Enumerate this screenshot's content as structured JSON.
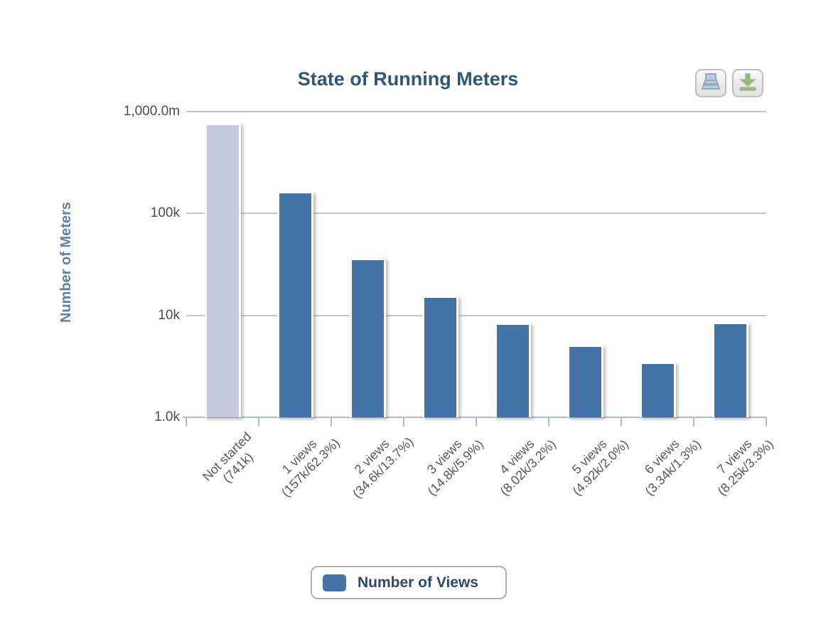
{
  "chart_data": {
    "type": "bar",
    "title": "State of Running Meters",
    "ylabel": "Number of Meters",
    "xlabel": "",
    "y_scale": "log",
    "ylim": [
      1000,
      1000000
    ],
    "y_ticks": [
      "1,000.0m",
      "100k",
      "10k",
      "1.0k"
    ],
    "grid": true,
    "legend_position": "bottom",
    "series_name": "Number of Views",
    "categories": [
      {
        "line1": "Not started",
        "line2": "(741k)",
        "value": 741000,
        "color": "#c3c9da"
      },
      {
        "line1": "1 views",
        "line2": "(157k/62.3%)",
        "value": 157000
      },
      {
        "line1": "2 views",
        "line2": "(34.6k/13.7%)",
        "value": 34600
      },
      {
        "line1": "3 views",
        "line2": "(14.8k/5.9%)",
        "value": 14800
      },
      {
        "line1": "4 views",
        "line2": "(8.02k/3.2%)",
        "value": 8020
      },
      {
        "line1": "5 views",
        "line2": "(4.92k/2.0%)",
        "value": 4920
      },
      {
        "line1": "6 views",
        "line2": "(3.34k/1.3%)",
        "value": 3340
      },
      {
        "line1": "7 views",
        "line2": "(8.25k/3.3%)",
        "value": 8250
      }
    ]
  },
  "legend": {
    "label": "Number of Views"
  },
  "toolbar": {
    "buttons": [
      {
        "name": "print",
        "icon": "printer-icon"
      },
      {
        "name": "download",
        "icon": "download-icon"
      }
    ]
  },
  "colors": {
    "bar": "#4573a7",
    "bar_not_started": "#c3c9da",
    "grid": "#c3c3c3",
    "axis": "#a9bdd1",
    "title": "#2d5777",
    "axis_title": "#5c82a8",
    "y_tick_label": "#4c4c4c",
    "x_tick_label": "#585858",
    "legend_text": "#2b4a6b",
    "download_green": "#93c153",
    "printer_blue": "#b5cce4"
  }
}
